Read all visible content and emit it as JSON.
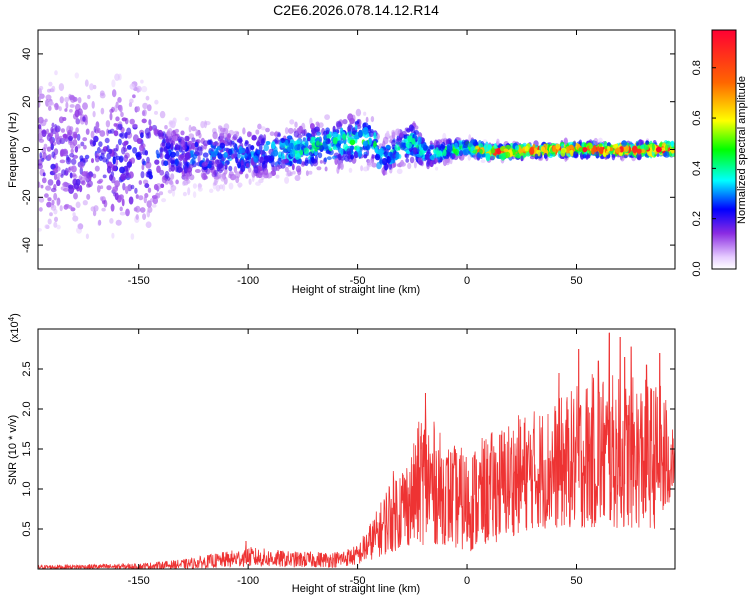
{
  "title": "C2E6.2026.078.14.12.R14",
  "chart_data": [
    {
      "type": "heatmap",
      "name": "spectrogram",
      "xlabel": "Height of straight line (km)",
      "ylabel": "Frequency (Hz)",
      "xlim": [
        -196,
        95
      ],
      "ylim": [
        -50,
        50
      ],
      "x_ticks": [
        -150,
        -100,
        -50,
        0,
        50
      ],
      "x_tick_labels": [
        "-150",
        "-100",
        "-50",
        "0",
        "50"
      ],
      "y_ticks": [
        -40,
        -20,
        0,
        20,
        40
      ],
      "y_tick_labels": [
        "-40",
        "-20",
        "0",
        "20",
        "40"
      ],
      "ridge": [
        {
          "x": -196,
          "freq": -2,
          "amp": 0.18,
          "spread": 48
        },
        {
          "x": -150,
          "freq": -3,
          "amp": 0.22,
          "spread": 45
        },
        {
          "x": -135,
          "freq": -3,
          "amp": 0.25,
          "spread": 20
        },
        {
          "x": -100,
          "freq": -2,
          "amp": 0.3,
          "spread": 15
        },
        {
          "x": -75,
          "freq": 0,
          "amp": 0.38,
          "spread": 14
        },
        {
          "x": -50,
          "freq": 4,
          "amp": 0.45,
          "spread": 14
        },
        {
          "x": -42,
          "freq": 3,
          "amp": 0.42,
          "spread": 12
        },
        {
          "x": -40,
          "freq": -4,
          "amp": 0.35,
          "spread": 10
        },
        {
          "x": -25,
          "freq": 3,
          "amp": 0.4,
          "spread": 12
        },
        {
          "x": -18,
          "freq": -2,
          "amp": 0.35,
          "spread": 8
        },
        {
          "x": 0,
          "freq": 1,
          "amp": 0.5,
          "spread": 5
        },
        {
          "x": 10,
          "freq": -1,
          "amp": 0.85,
          "spread": 4
        },
        {
          "x": 50,
          "freq": 0,
          "amp": 0.8,
          "spread": 4
        },
        {
          "x": 95,
          "freq": 0,
          "amp": 0.85,
          "spread": 4
        }
      ],
      "colorbar": {
        "label": "Normalized spectral amplitude",
        "range": [
          0,
          0.95
        ],
        "ticks": [
          0.0,
          0.2,
          0.4,
          0.6,
          0.8
        ],
        "tick_labels": [
          "0.0",
          "0.2",
          "0.4",
          "0.6",
          "0.8"
        ]
      }
    },
    {
      "type": "line",
      "name": "snr",
      "xlabel": "Height of straight line (km)",
      "ylabel": "SNR (10 * v/v)",
      "y_multiplier": "(x10",
      "y_multiplier_exp": "4",
      "y_multiplier_close": ")",
      "color": "#ee3333",
      "xlim": [
        -196,
        95
      ],
      "ylim": [
        0,
        3.0
      ],
      "x_ticks": [
        -150,
        -100,
        -50,
        0,
        50
      ],
      "x_tick_labels": [
        "-150",
        "-100",
        "-50",
        "0",
        "50"
      ],
      "y_ticks": [
        0.5,
        1.0,
        1.5,
        2.0,
        2.5
      ],
      "y_tick_labels": [
        "0.5",
        "1.0",
        "1.5",
        "2.0",
        "2.5"
      ],
      "envelope": [
        {
          "x": -196,
          "lo": 0.0,
          "hi": 0.05
        },
        {
          "x": -150,
          "lo": 0.0,
          "hi": 0.07
        },
        {
          "x": -130,
          "lo": 0.0,
          "hi": 0.12
        },
        {
          "x": -110,
          "lo": 0.02,
          "hi": 0.22
        },
        {
          "x": -100,
          "lo": 0.03,
          "hi": 0.28
        },
        {
          "x": -80,
          "lo": 0.02,
          "hi": 0.22
        },
        {
          "x": -60,
          "lo": 0.02,
          "hi": 0.22
        },
        {
          "x": -50,
          "lo": 0.05,
          "hi": 0.3
        },
        {
          "x": -40,
          "lo": 0.15,
          "hi": 0.8
        },
        {
          "x": -35,
          "lo": 0.2,
          "hi": 1.2
        },
        {
          "x": -25,
          "lo": 0.3,
          "hi": 1.5
        },
        {
          "x": -20,
          "lo": 0.3,
          "hi": 2.1
        },
        {
          "x": -10,
          "lo": 0.3,
          "hi": 1.6
        },
        {
          "x": 0,
          "lo": 0.2,
          "hi": 1.5
        },
        {
          "x": 10,
          "lo": 0.3,
          "hi": 1.7
        },
        {
          "x": 20,
          "lo": 0.4,
          "hi": 1.9
        },
        {
          "x": 30,
          "lo": 0.5,
          "hi": 2.0
        },
        {
          "x": 40,
          "lo": 0.5,
          "hi": 2.1
        },
        {
          "x": 50,
          "lo": 0.5,
          "hi": 2.3
        },
        {
          "x": 60,
          "lo": 0.5,
          "hi": 2.5
        },
        {
          "x": 70,
          "lo": 0.5,
          "hi": 2.4
        },
        {
          "x": 80,
          "lo": 0.5,
          "hi": 2.4
        },
        {
          "x": 90,
          "lo": 0.5,
          "hi": 2.3
        },
        {
          "x": 95,
          "lo": 1.1,
          "hi": 1.6
        }
      ],
      "peaks": [
        {
          "x": -101,
          "y": 0.35
        },
        {
          "x": -19,
          "y": 2.2
        },
        {
          "x": 42,
          "y": 2.45
        },
        {
          "x": 51,
          "y": 2.75
        },
        {
          "x": 60,
          "y": 2.6
        },
        {
          "x": 65,
          "y": 2.95
        },
        {
          "x": 70,
          "y": 2.9
        },
        {
          "x": 72,
          "y": 2.65
        },
        {
          "x": 75,
          "y": 2.78
        },
        {
          "x": 82,
          "y": 2.55
        },
        {
          "x": 88,
          "y": 2.7
        }
      ]
    }
  ]
}
